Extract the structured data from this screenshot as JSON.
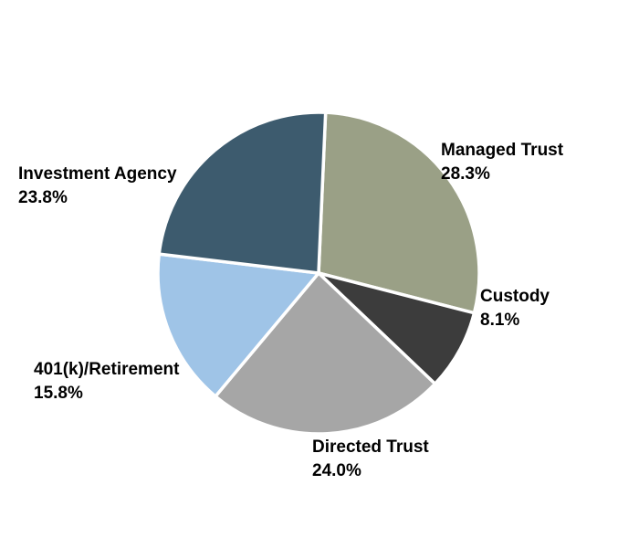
{
  "chart_data": {
    "type": "pie",
    "title": "",
    "legend": "none",
    "slices": [
      {
        "label": "Managed Trust",
        "value": 28.3,
        "display": "28.3%",
        "color": "#9aa086"
      },
      {
        "label": "Custody",
        "value": 8.1,
        "display": "8.1%",
        "color": "#3c3c3c"
      },
      {
        "label": "Directed Trust",
        "value": 24.0,
        "display": "24.0%",
        "color": "#a6a6a6"
      },
      {
        "label": "401(k)/Retirement",
        "value": 15.8,
        "display": "15.8%",
        "color": "#9fc4e7"
      },
      {
        "label": "Investment Agency",
        "value": 23.8,
        "display": "23.8%",
        "color": "#3d5b6e"
      }
    ],
    "start_angle_deg": 0,
    "direction": "clockwise",
    "slice_border_color": "#ffffff"
  }
}
